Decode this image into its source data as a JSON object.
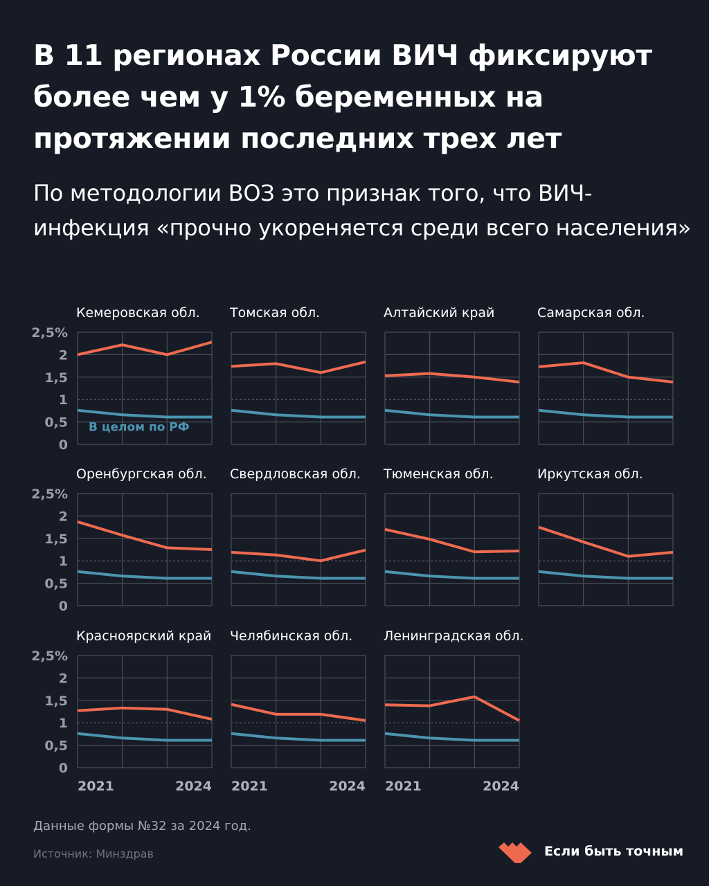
{
  "header": {
    "title": "В 11 регионах России ВИЧ фиксируют более чем у 1% беременных на протяжении последних трех лет",
    "subtitle": "По методологии ВОЗ это признак того, что ВИЧ-инфекция «прочно укореняется среди всего населения»"
  },
  "chart_data": {
    "type": "line",
    "layout": "small multiples",
    "x": [
      2021,
      2022,
      2023,
      2024
    ],
    "x_tick_labels": [
      "2021",
      "2024"
    ],
    "ylim": [
      0,
      2.5
    ],
    "y_tick_labels": [
      "2,5%",
      "2",
      "1,5",
      "1",
      "0,5",
      "0"
    ],
    "reference_line": 1,
    "grid": true,
    "colors": {
      "region": "#ee6a4f",
      "russia": "#4b94b0"
    },
    "russia_label": "В целом по РФ",
    "russia": [
      0.76,
      0.66,
      0.61,
      0.61
    ],
    "panels": [
      {
        "name": "Кемеровская обл.",
        "values": [
          2.0,
          2.22,
          2.0,
          2.28
        ]
      },
      {
        "name": "Томская обл.",
        "values": [
          1.74,
          1.8,
          1.6,
          1.84
        ]
      },
      {
        "name": "Алтайский край",
        "values": [
          1.53,
          1.58,
          1.5,
          1.39
        ]
      },
      {
        "name": "Самарская обл.",
        "values": [
          1.73,
          1.82,
          1.5,
          1.39
        ]
      },
      {
        "name": "Оренбургская обл.",
        "values": [
          1.87,
          1.57,
          1.29,
          1.25
        ]
      },
      {
        "name": "Свердловская обл.",
        "values": [
          1.19,
          1.13,
          1.0,
          1.24
        ]
      },
      {
        "name": "Тюменская обл.",
        "values": [
          1.7,
          1.48,
          1.2,
          1.22
        ]
      },
      {
        "name": "Иркутская обл.",
        "values": [
          1.75,
          1.42,
          1.1,
          1.19
        ]
      },
      {
        "name": "Красноярский край",
        "values": [
          1.27,
          1.33,
          1.3,
          1.08
        ]
      },
      {
        "name": "Челябинская обл.",
        "values": [
          1.41,
          1.19,
          1.19,
          1.05
        ]
      },
      {
        "name": "Ленинградская обл.",
        "values": [
          1.4,
          1.38,
          1.58,
          1.05
        ]
      }
    ]
  },
  "footer": {
    "note": "Данные формы №32 за 2024 год.",
    "source": "Источник: Минздрав",
    "brand": "Если быть точным"
  }
}
